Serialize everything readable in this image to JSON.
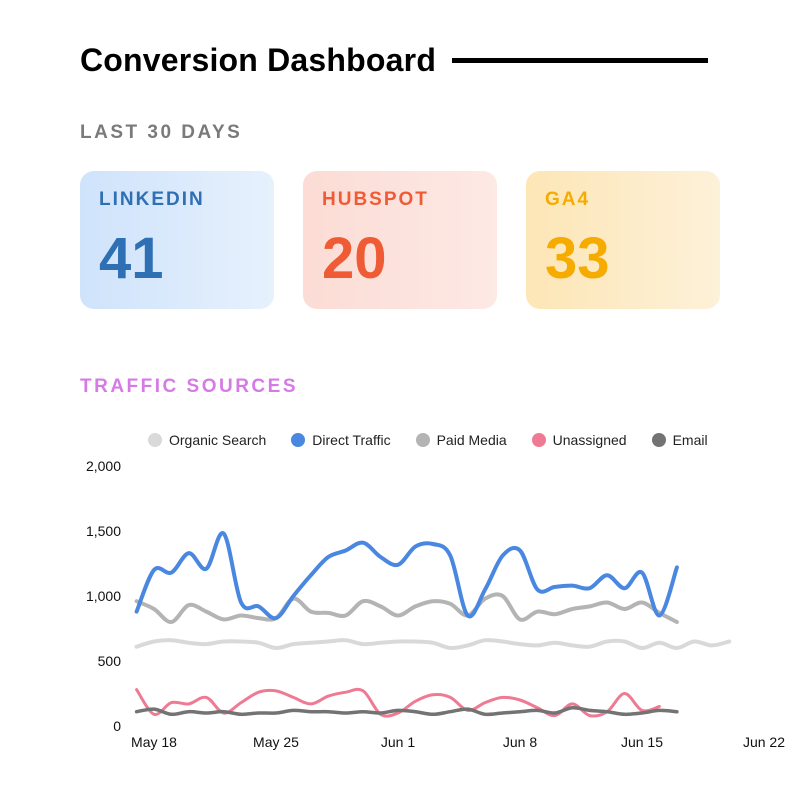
{
  "header": {
    "title": "Conversion Dashboard",
    "period_label": "LAST 30 DAYS"
  },
  "kpis": [
    {
      "label": "LINKEDIN",
      "value": "41",
      "color": "#2f6fb3"
    },
    {
      "label": "HUBSPOT",
      "value": "20",
      "color": "#ee5b35"
    },
    {
      "label": "GA4",
      "value": "33",
      "color": "#f5ab00"
    }
  ],
  "traffic": {
    "section_label": "TRAFFIC SOURCES",
    "section_color": "#d67be6"
  },
  "chart_data": {
    "type": "line",
    "x_start": "May 17",
    "x_end": "Jun 20",
    "x_ticks": [
      "May 18",
      "May 25",
      "Jun 1",
      "Jun 8",
      "Jun 15",
      "Jun 22"
    ],
    "y_ticks": [
      "0",
      "500",
      "1,000",
      "1,500",
      "2,000"
    ],
    "ylim": [
      0,
      2000
    ],
    "xlabel": "",
    "ylabel": "",
    "legend_position": "top",
    "grid": false,
    "x": [
      "May 17",
      "May 18",
      "May 19",
      "May 20",
      "May 21",
      "May 22",
      "May 23",
      "May 24",
      "May 25",
      "May 26",
      "May 27",
      "May 28",
      "May 29",
      "May 30",
      "May 31",
      "Jun 1",
      "Jun 2",
      "Jun 3",
      "Jun 4",
      "Jun 5",
      "Jun 6",
      "Jun 7",
      "Jun 8",
      "Jun 9",
      "Jun 10",
      "Jun 11",
      "Jun 12",
      "Jun 13",
      "Jun 14",
      "Jun 15",
      "Jun 16",
      "Jun 17",
      "Jun 18",
      "Jun 19",
      "Jun 20"
    ],
    "series": [
      {
        "name": "Organic Search",
        "color": "#d9d9d9",
        "width": 4,
        "values": [
          610,
          650,
          660,
          640,
          630,
          650,
          650,
          640,
          600,
          630,
          640,
          650,
          660,
          630,
          640,
          650,
          650,
          640,
          600,
          620,
          660,
          650,
          630,
          620,
          640,
          620,
          610,
          650,
          650,
          600,
          640,
          600,
          650,
          620,
          650
        ]
      },
      {
        "name": "Direct Traffic",
        "color": "#4a87e0",
        "width": 4,
        "values": [
          880,
          1200,
          1180,
          1330,
          1210,
          1480,
          950,
          920,
          830,
          1000,
          1160,
          1300,
          1350,
          1410,
          1300,
          1240,
          1380,
          1400,
          1310,
          850,
          1050,
          1310,
          1350,
          1050,
          1070,
          1080,
          1060,
          1160,
          1060,
          1180,
          850,
          1220,
          null,
          null,
          null
        ]
      },
      {
        "name": "Paid Media",
        "color": "#b4b4b4",
        "width": 4,
        "values": [
          960,
          900,
          800,
          930,
          880,
          820,
          850,
          830,
          830,
          980,
          880,
          870,
          850,
          960,
          920,
          850,
          920,
          960,
          940,
          850,
          980,
          1000,
          820,
          880,
          860,
          900,
          920,
          950,
          900,
          950,
          870,
          800,
          null,
          null,
          null
        ]
      },
      {
        "name": "Unassigned",
        "color": "#ee7a93",
        "width": 3,
        "values": [
          280,
          90,
          180,
          170,
          220,
          100,
          180,
          260,
          270,
          220,
          170,
          230,
          260,
          270,
          90,
          100,
          190,
          240,
          220,
          120,
          180,
          220,
          200,
          140,
          80,
          170,
          80,
          110,
          250,
          120,
          150,
          null,
          null,
          null,
          null
        ]
      },
      {
        "name": "Email",
        "color": "#737373",
        "width": 3.5,
        "values": [
          110,
          130,
          90,
          110,
          100,
          110,
          90,
          100,
          100,
          120,
          110,
          110,
          100,
          110,
          100,
          120,
          110,
          90,
          110,
          130,
          90,
          100,
          110,
          120,
          100,
          140,
          120,
          110,
          90,
          100,
          120,
          110,
          null,
          null,
          null
        ]
      }
    ]
  }
}
